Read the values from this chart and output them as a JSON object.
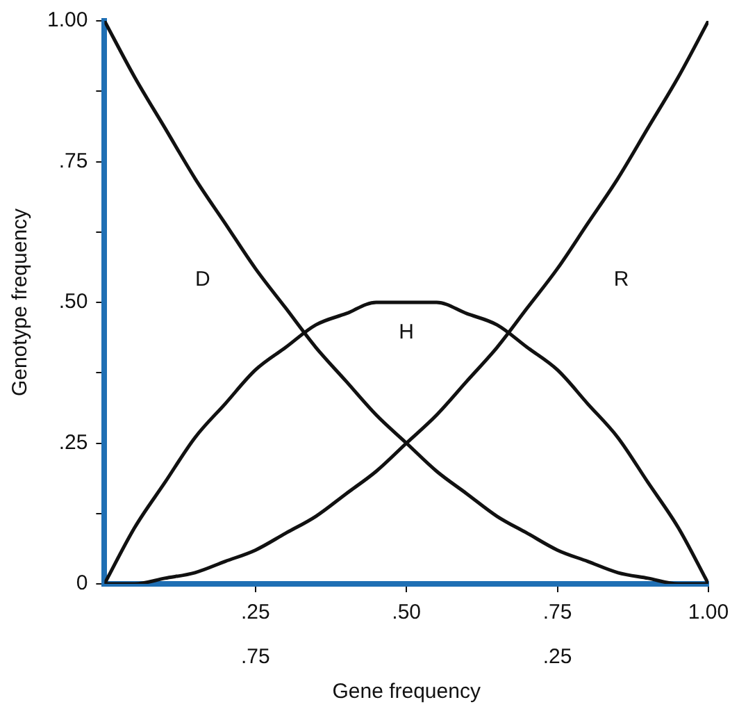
{
  "chart_data": {
    "type": "line",
    "xlabel": "Gene frequency",
    "ylabel": "Genotype frequency",
    "x": [
      0,
      0.05,
      0.1,
      0.15,
      0.2,
      0.25,
      0.3,
      0.35,
      0.4,
      0.45,
      0.5,
      0.55,
      0.6,
      0.65,
      0.7,
      0.75,
      0.8,
      0.85,
      0.9,
      0.95,
      1
    ],
    "series": [
      {
        "name": "D",
        "color": "#111111",
        "values": [
          1,
          0.9,
          0.81,
          0.72,
          0.64,
          0.56,
          0.49,
          0.42,
          0.36,
          0.3,
          0.25,
          0.2,
          0.16,
          0.12,
          0.09,
          0.06,
          0.04,
          0.02,
          0.01,
          0,
          0
        ]
      },
      {
        "name": "H",
        "color": "#111111",
        "values": [
          0,
          0.1,
          0.18,
          0.26,
          0.32,
          0.38,
          0.42,
          0.46,
          0.48,
          0.5,
          0.5,
          0.5,
          0.48,
          0.46,
          0.42,
          0.38,
          0.32,
          0.26,
          0.18,
          0.1,
          0
        ]
      },
      {
        "name": "R",
        "color": "#111111",
        "values": [
          0,
          0,
          0.01,
          0.02,
          0.04,
          0.06,
          0.09,
          0.12,
          0.16,
          0.2,
          0.25,
          0.3,
          0.36,
          0.42,
          0.49,
          0.56,
          0.64,
          0.72,
          0.81,
          0.9,
          1
        ]
      }
    ],
    "xlim": [
      0,
      1
    ],
    "xticks": [
      {
        "value": 0.25,
        "label": ".25"
      },
      {
        "value": 0.5,
        "label": ".50"
      },
      {
        "value": 0.75,
        "label": ".75"
      },
      {
        "value": 1,
        "label": "1.00"
      }
    ],
    "x2lim": [
      1,
      0
    ],
    "x2ticks": [
      {
        "value": 0.75,
        "label": ".75"
      },
      {
        "value": 0.25,
        "label": ".25"
      }
    ],
    "ylim": [
      0,
      1
    ],
    "yticks": [
      {
        "value": 0,
        "label": "0"
      },
      {
        "value": 0.125,
        "label": null
      },
      {
        "value": 0.25,
        "label": ".25"
      },
      {
        "value": 0.375,
        "label": null
      },
      {
        "value": 0.5,
        "label": ".50"
      },
      {
        "value": 0.625,
        "label": null
      },
      {
        "value": 0.75,
        "label": ".75"
      },
      {
        "value": 0.875,
        "label": null
      },
      {
        "value": 1,
        "label": "1.00"
      }
    ],
    "grid": false,
    "legend": false,
    "marker": "none",
    "line_style": "solid"
  }
}
